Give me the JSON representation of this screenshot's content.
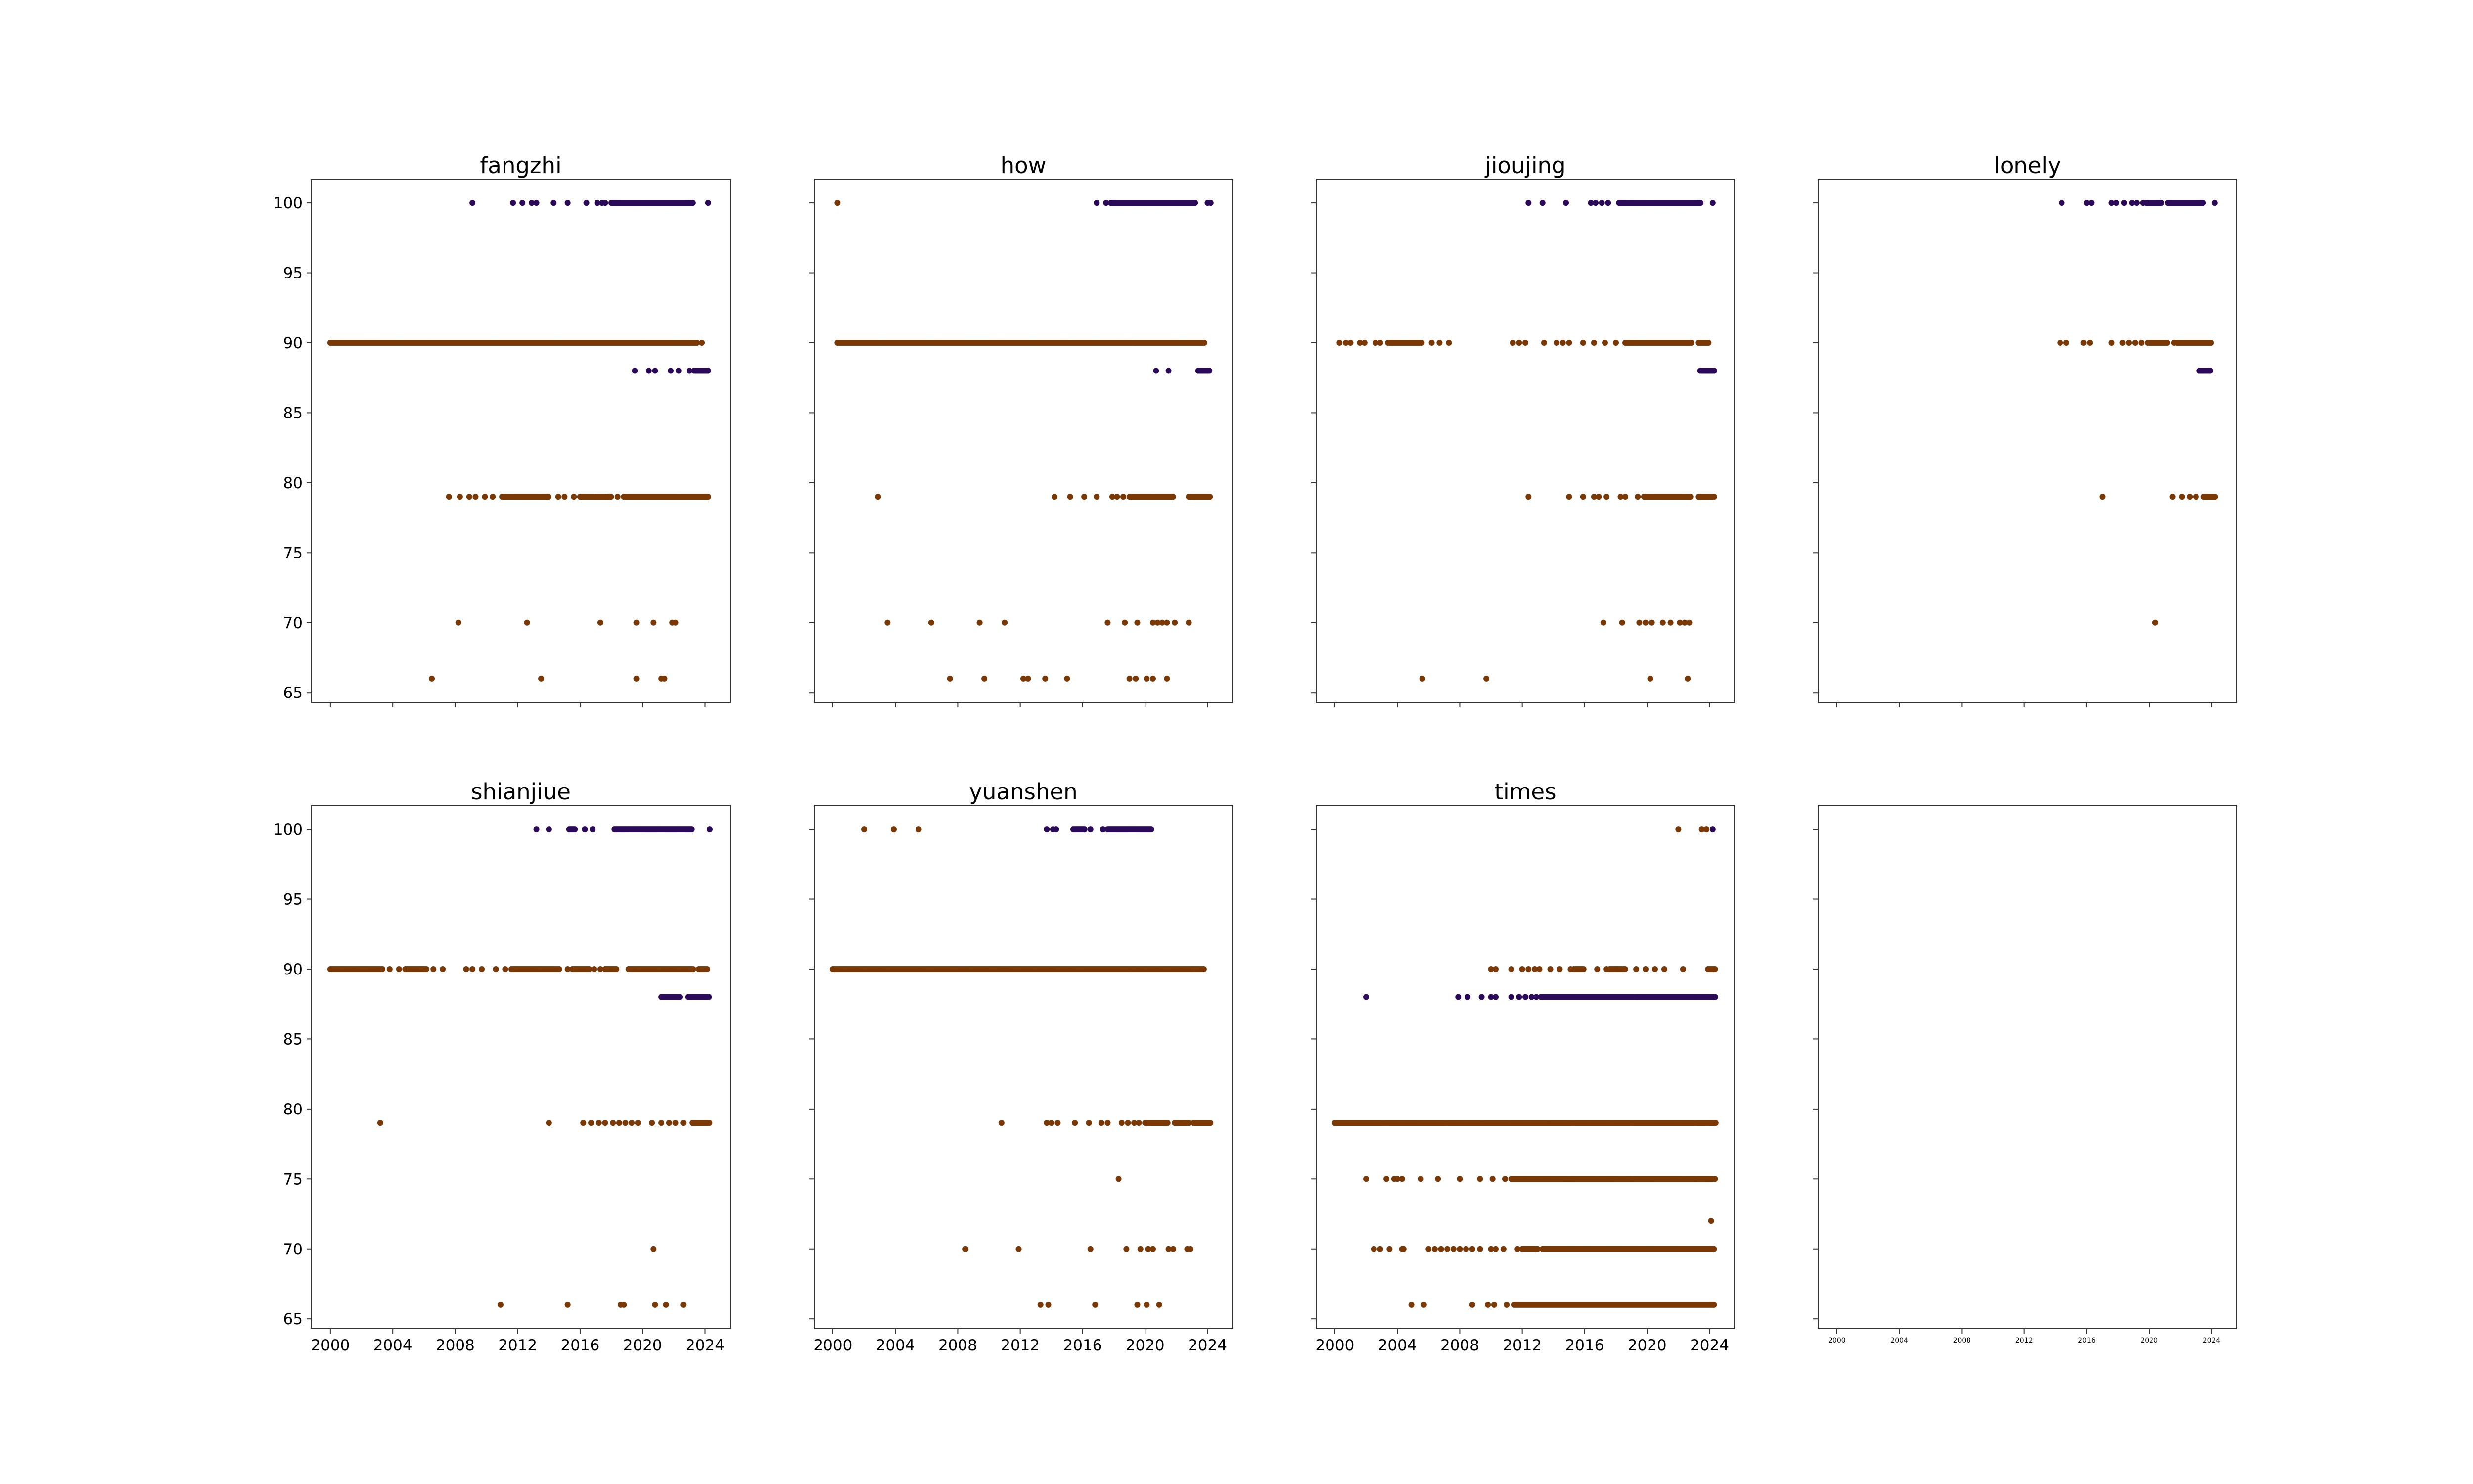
{
  "chart_data": {
    "type": "scatter",
    "layout": "2x4 grid of small-multiple scatter plots",
    "x_ticks": [
      "2000",
      "2004",
      "2008",
      "2012",
      "2016",
      "2020",
      "2024"
    ],
    "y_ticks": [
      "65",
      "70",
      "75",
      "80",
      "85",
      "90",
      "95",
      "100"
    ],
    "xlim": [
      1998.8,
      2025.6
    ],
    "ylim": [
      64.3,
      101.7
    ],
    "colors": {
      "orange": "#7a3805",
      "purple": "#2b0a5a"
    },
    "panels": [
      {
        "title": "fangzhi",
        "series": [
          {
            "color": "purple",
            "y": 100,
            "points": [
              2009.1,
              2011.7,
              2012.3,
              2012.9,
              2013.2,
              2014.3,
              2015.2,
              2016.4,
              2017.1,
              2017.4,
              2017.6
            ],
            "bands": [
              [
                2018.0,
                2023.3
              ]
            ],
            "extra": [
              2024.2
            ]
          },
          {
            "color": "orange",
            "y": 90,
            "points": [
              2023.8
            ],
            "bands": [
              [
                2000.0,
                2023.5
              ]
            ]
          },
          {
            "color": "purple",
            "y": 88,
            "points": [
              2019.5,
              2020.4,
              2020.8,
              2021.8,
              2022.3,
              2023.0
            ],
            "bands": [
              [
                2023.3,
                2024.2
              ]
            ]
          },
          {
            "color": "orange",
            "y": 79,
            "points": [
              2007.6,
              2008.3,
              2008.9,
              2009.3,
              2009.9,
              2010.4,
              2014.6,
              2015.0,
              2015.6,
              2017.0,
              2017.8,
              2018.4
            ],
            "bands": [
              [
                2011.0,
                2014.0
              ],
              [
                2016.0,
                2018.0
              ],
              [
                2018.8,
                2024.2
              ]
            ]
          },
          {
            "color": "orange",
            "y": 70,
            "points": [
              2008.2,
              2012.6,
              2017.3,
              2019.6,
              2020.7,
              2021.9,
              2022.1
            ]
          },
          {
            "color": "orange",
            "y": 66,
            "points": [
              2006.5,
              2013.5,
              2019.6,
              2021.2,
              2021.4
            ]
          }
        ]
      },
      {
        "title": "how",
        "series": [
          {
            "color": "orange",
            "y": 100,
            "points": [
              2000.3
            ]
          },
          {
            "color": "purple",
            "y": 100,
            "points": [
              2016.9,
              2017.5,
              2024.0,
              2024.2
            ],
            "bands": [
              [
                2017.8,
                2023.2
              ]
            ]
          },
          {
            "color": "orange",
            "y": 90,
            "points": [],
            "bands": [
              [
                2000.3,
                2023.8
              ]
            ]
          },
          {
            "color": "purple",
            "y": 88,
            "points": [
              2020.7,
              2021.5
            ],
            "bands": [
              [
                2023.4,
                2024.2
              ]
            ]
          },
          {
            "color": "orange",
            "y": 79,
            "points": [
              2002.9,
              2014.2,
              2015.2,
              2016.1,
              2016.9,
              2017.9,
              2018.2,
              2018.6
            ],
            "bands": [
              [
                2019.0,
                2021.8
              ],
              [
                2022.8,
                2024.2
              ]
            ]
          },
          {
            "color": "orange",
            "y": 70,
            "points": [
              2003.5,
              2006.3,
              2009.4,
              2011.0,
              2017.6,
              2018.7,
              2019.5,
              2020.5,
              2020.8,
              2021.1,
              2021.4,
              2021.9,
              2022.8
            ]
          },
          {
            "color": "orange",
            "y": 66,
            "points": [
              2007.5,
              2009.7,
              2012.2,
              2012.5,
              2013.6,
              2015.0,
              2019.0,
              2019.4,
              2020.1,
              2020.5,
              2021.4
            ]
          }
        ]
      },
      {
        "title": "jioujing",
        "series": [
          {
            "color": "purple",
            "y": 100,
            "points": [
              2012.4,
              2013.3,
              2014.8,
              2016.4,
              2016.7,
              2017.1,
              2017.5,
              2024.2
            ],
            "bands": [
              [
                2018.2,
                2023.5
              ]
            ]
          },
          {
            "color": "orange",
            "y": 90,
            "points": [
              2000.3,
              2000.7,
              2001.0,
              2001.6,
              2001.9,
              2002.6,
              2002.9,
              2006.2,
              2006.7,
              2007.3,
              2011.4,
              2011.8,
              2012.2,
              2013.4,
              2014.2,
              2014.6,
              2015.0,
              2015.9,
              2016.6,
              2017.3,
              2018.0
            ],
            "bands": [
              [
                2003.4,
                2005.6
              ],
              [
                2018.6,
                2022.9
              ],
              [
                2023.3,
                2024.0
              ]
            ]
          },
          {
            "color": "purple",
            "y": 88,
            "points": [],
            "bands": [
              [
                2023.4,
                2024.3
              ]
            ]
          },
          {
            "color": "orange",
            "y": 79,
            "points": [
              2012.4,
              2015.0,
              2015.9,
              2016.6,
              2016.9,
              2017.4,
              2018.3,
              2018.6,
              2019.4
            ],
            "bands": [
              [
                2019.8,
                2022.8
              ],
              [
                2023.3,
                2024.3
              ]
            ]
          },
          {
            "color": "orange",
            "y": 70,
            "points": [
              2017.2,
              2018.4,
              2019.5,
              2019.9,
              2020.3,
              2021.0,
              2021.5,
              2022.1,
              2022.4,
              2022.7
            ]
          },
          {
            "color": "orange",
            "y": 66,
            "points": [
              2005.6,
              2009.7,
              2020.2,
              2022.6
            ]
          }
        ]
      },
      {
        "title": "lonely",
        "series": [
          {
            "color": "purple",
            "y": 100,
            "points": [
              2014.4,
              2016.0,
              2016.3,
              2017.6,
              2017.9,
              2018.4,
              2018.9,
              2019.2,
              2019.6,
              2024.2
            ],
            "bands": [
              [
                2019.8,
                2020.8
              ],
              [
                2021.2,
                2023.5
              ]
            ]
          },
          {
            "color": "orange",
            "y": 90,
            "points": [
              2014.3,
              2014.7,
              2015.8,
              2016.2,
              2017.6,
              2018.3,
              2018.7,
              2019.1,
              2019.5,
              2021.6
            ],
            "bands": [
              [
                2019.9,
                2021.2
              ],
              [
                2021.8,
                2024.0
              ]
            ]
          },
          {
            "color": "purple",
            "y": 88,
            "points": [],
            "bands": [
              [
                2023.2,
                2024.0
              ]
            ]
          },
          {
            "color": "orange",
            "y": 79,
            "points": [
              2017.0,
              2021.5,
              2022.1,
              2022.6,
              2023.0
            ],
            "bands": [
              [
                2023.5,
                2024.3
              ]
            ]
          },
          {
            "color": "orange",
            "y": 70,
            "points": [
              2020.4
            ]
          }
        ]
      },
      {
        "title": "shianjiue",
        "series": [
          {
            "color": "purple",
            "y": 100,
            "points": [
              2013.2,
              2014.0,
              2016.3,
              2016.8,
              2024.3
            ],
            "bands": [
              [
                2015.3,
                2015.7
              ],
              [
                2018.2,
                2023.2
              ]
            ]
          },
          {
            "color": "orange",
            "y": 90,
            "points": [
              2003.8,
              2004.4,
              2006.6,
              2007.2,
              2008.7,
              2009.1,
              2009.7,
              2010.6,
              2011.2,
              2015.2,
              2016.9,
              2017.3
            ],
            "bands": [
              [
                2000.0,
                2003.4
              ],
              [
                2004.8,
                2006.2
              ],
              [
                2011.6,
                2014.7
              ],
              [
                2015.5,
                2016.6
              ],
              [
                2017.6,
                2018.4
              ],
              [
                2019.1,
                2023.3
              ],
              [
                2023.6,
                2024.2
              ]
            ]
          },
          {
            "color": "purple",
            "y": 88,
            "points": [],
            "bands": [
              [
                2021.2,
                2022.4
              ],
              [
                2022.9,
                2024.3
              ]
            ]
          },
          {
            "color": "orange",
            "y": 79,
            "points": [
              2003.2,
              2014.0,
              2016.2,
              2016.7,
              2017.2,
              2017.6,
              2018.1,
              2018.5,
              2018.9,
              2019.3,
              2019.7,
              2020.6,
              2021.2,
              2021.7,
              2022.1,
              2022.6
            ],
            "bands": [
              [
                2023.2,
                2024.3
              ]
            ]
          },
          {
            "color": "orange",
            "y": 70,
            "points": [
              2020.7
            ]
          },
          {
            "color": "orange",
            "y": 66,
            "points": [
              2010.9,
              2015.2,
              2018.6,
              2018.8,
              2020.8,
              2021.5,
              2022.6
            ]
          }
        ]
      },
      {
        "title": "yuanshen",
        "series": [
          {
            "color": "orange",
            "y": 100,
            "points": [
              2002.0,
              2003.9,
              2005.5
            ]
          },
          {
            "color": "purple",
            "y": 100,
            "points": [
              2013.7,
              2014.1,
              2014.3,
              2016.5,
              2017.3
            ],
            "bands": [
              [
                2015.4,
                2016.2
              ],
              [
                2017.6,
                2020.4
              ]
            ]
          },
          {
            "color": "orange",
            "y": 90,
            "points": [],
            "bands": [
              [
                2000.0,
                2023.8
              ]
            ]
          },
          {
            "color": "orange",
            "y": 79,
            "points": [
              2010.8,
              2013.7,
              2014.0,
              2014.4,
              2015.5,
              2016.4,
              2017.2,
              2017.6,
              2018.5,
              2018.9,
              2019.3,
              2019.6
            ],
            "bands": [
              [
                2020.0,
                2021.5
              ],
              [
                2021.9,
                2022.8
              ],
              [
                2023.1,
                2024.2
              ]
            ]
          },
          {
            "color": "orange",
            "y": 75,
            "points": [
              2018.3
            ]
          },
          {
            "color": "orange",
            "y": 70,
            "points": [
              2008.5,
              2011.9,
              2016.5,
              2018.8,
              2019.7,
              2020.2,
              2020.5,
              2021.5,
              2021.8,
              2022.7,
              2022.9
            ]
          },
          {
            "color": "orange",
            "y": 66,
            "points": [
              2013.3,
              2013.8,
              2016.8,
              2019.5,
              2020.1,
              2020.9
            ]
          }
        ]
      },
      {
        "title": "times",
        "series": [
          {
            "color": "orange",
            "y": 100,
            "points": [
              2022.0,
              2023.5,
              2023.8
            ]
          },
          {
            "color": "purple",
            "y": 100,
            "points": [
              2024.2
            ]
          },
          {
            "color": "orange",
            "y": 90,
            "points": [
              2010.0,
              2010.3,
              2011.3,
              2012.0,
              2012.4,
              2012.8,
              2013.1,
              2013.8,
              2014.4,
              2015.1,
              2016.8,
              2017.4,
              2018.1,
              2019.3,
              2019.9,
              2020.5,
              2021.1,
              2022.3
            ],
            "bands": [
              [
                2015.3,
                2016.0
              ],
              [
                2017.6,
                2018.6
              ],
              [
                2023.9,
                2024.4
              ]
            ]
          },
          {
            "color": "purple",
            "y": 88,
            "points": [
              2002.0,
              2007.9,
              2008.5,
              2009.4,
              2010.0,
              2010.3,
              2011.3,
              2011.8,
              2012.2,
              2012.6,
              2012.9
            ],
            "bands": [
              [
                2013.2,
                2024.4
              ]
            ]
          },
          {
            "color": "orange",
            "y": 79,
            "points": [],
            "bands": [
              [
                2000.0,
                2024.4
              ]
            ]
          },
          {
            "color": "orange",
            "y": 75,
            "points": [
              2002.0,
              2003.3,
              2003.8,
              2004.0,
              2004.3,
              2005.5,
              2006.6,
              2008.0,
              2009.3,
              2010.1,
              2010.9
            ],
            "bands": [
              [
                2011.3,
                2024.4
              ]
            ]
          },
          {
            "color": "orange",
            "y": 72,
            "points": [
              2024.1
            ]
          },
          {
            "color": "orange",
            "y": 70,
            "points": [
              2002.5,
              2002.9,
              2003.5,
              2004.3,
              2004.4,
              2006.0,
              2006.4,
              2006.8,
              2007.2,
              2007.6,
              2008.0,
              2008.4,
              2008.8,
              2009.3,
              2010.0,
              2010.3,
              2010.8,
              2011.7
            ],
            "bands": [
              [
                2012.0,
                2013.0
              ],
              [
                2013.3,
                2024.3
              ]
            ]
          },
          {
            "color": "orange",
            "y": 66,
            "points": [
              2004.9,
              2005.7,
              2008.8,
              2009.8,
              2010.2,
              2011.0
            ],
            "bands": [
              [
                2011.5,
                2024.3
              ]
            ]
          }
        ]
      },
      {
        "title": "",
        "series": []
      }
    ]
  }
}
